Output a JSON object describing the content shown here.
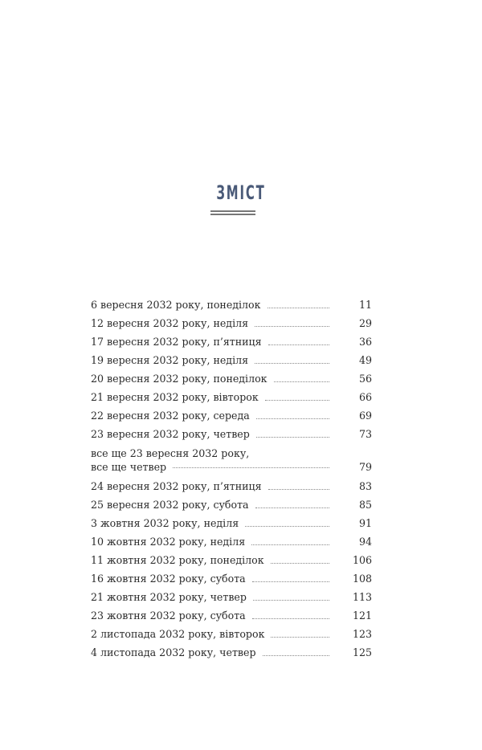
{
  "heading": "ЗМІСТ",
  "entries": [
    {
      "title": "6 вересня 2032 року, понеділок",
      "page": "11"
    },
    {
      "title": "12 вересня 2032 року, неділя",
      "page": "29"
    },
    {
      "title": "17 вересня 2032 року, п’ятниця",
      "page": "36"
    },
    {
      "title": "19 вересня 2032 року, неділя",
      "page": "49"
    },
    {
      "title": "20 вересня 2032 року, понеділок",
      "page": "56"
    },
    {
      "title": "21 вересня 2032 року, вівторок",
      "page": "66"
    },
    {
      "title": "22 вересня 2032 року, середа",
      "page": "69"
    },
    {
      "title": "23 вересня 2032 року, четвер",
      "page": "73"
    },
    {
      "lines": [
        "все ще 23 вересня 2032 року,",
        "все ще четвер"
      ],
      "page": "79"
    },
    {
      "title": "24 вересня 2032 року, п’ятниця",
      "page": "83"
    },
    {
      "title": "25 вересня 2032 року, субота",
      "page": "85"
    },
    {
      "title": "3 жовтня 2032 року, неділя",
      "page": "91"
    },
    {
      "title": "10 жовтня 2032 року, неділя",
      "page": "94"
    },
    {
      "title": "11 жовтня 2032 року, понеділок",
      "page": "106"
    },
    {
      "title": "16 жовтня 2032 року, субота",
      "page": "108"
    },
    {
      "title": "21 жовтня 2032 року, четвер",
      "page": "113"
    },
    {
      "title": "23 жовтня 2032 року, субота",
      "page": "121"
    },
    {
      "title": "2 листопада 2032 року, вівторок",
      "page": "123"
    },
    {
      "title": "4 листопада 2032 року, четвер",
      "page": "125"
    }
  ]
}
